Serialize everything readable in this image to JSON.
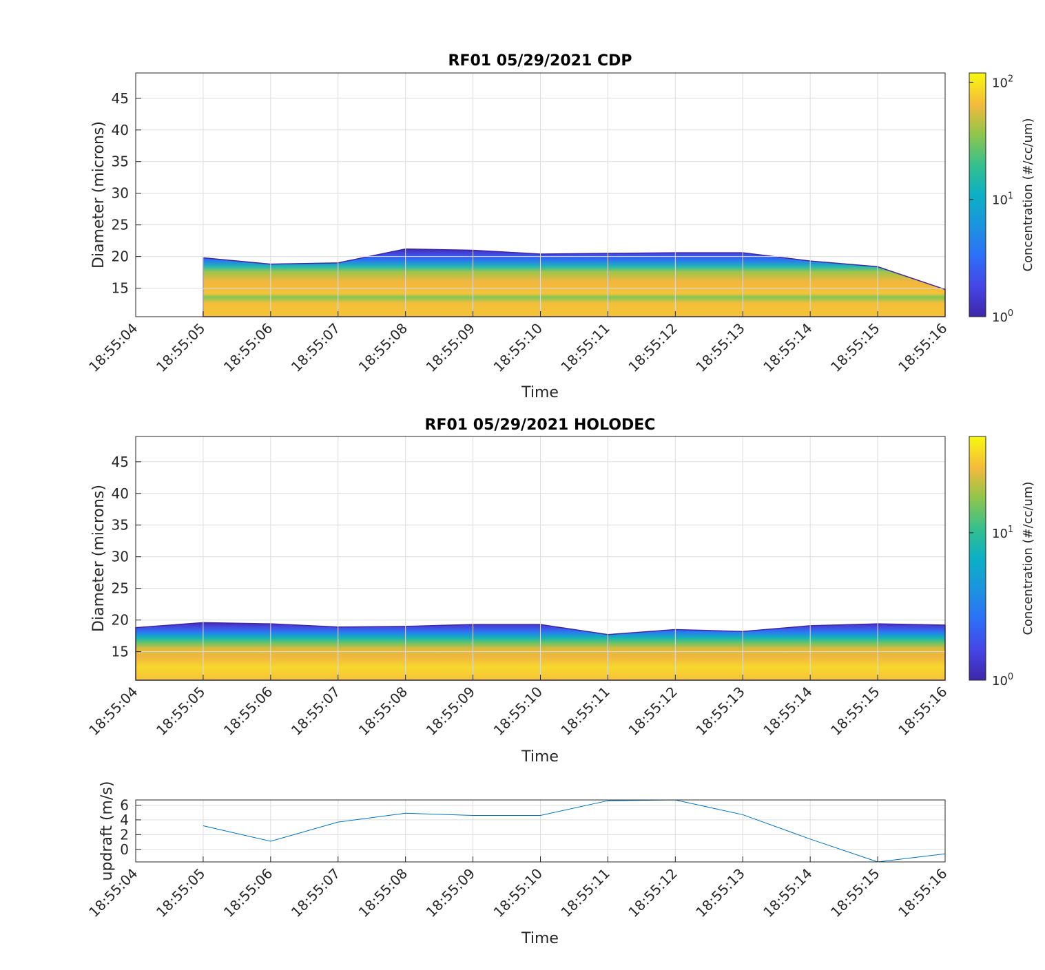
{
  "chart_data": [
    {
      "type": "heatmap",
      "title": "RF01 05/29/2021 CDP",
      "xlabel": "Time",
      "ylabel": "Diameter (microns)",
      "x": [
        "18:55:04",
        "18:55:05",
        "18:55:06",
        "18:55:07",
        "18:55:08",
        "18:55:09",
        "18:55:10",
        "18:55:11",
        "18:55:12",
        "18:55:13",
        "18:55:14",
        "18:55:15",
        "18:55:16"
      ],
      "xticks": [
        "18:55:04",
        "18:55:05",
        "18:55:06",
        "18:55:07",
        "18:55:08",
        "18:55:09",
        "18:55:10",
        "18:55:11",
        "18:55:12",
        "18:55:13",
        "18:55:14",
        "18:55:15",
        "18:55:16"
      ],
      "ylim": [
        10.5,
        49
      ],
      "yticks": [
        15,
        20,
        25,
        30,
        35,
        40,
        45
      ],
      "upper_diameter": [
        null,
        19.8,
        18.8,
        19.0,
        21.2,
        21.0,
        20.4,
        20.5,
        20.6,
        20.6,
        19.3,
        18.4,
        14.8
      ],
      "colorbar": {
        "label": "Concentration (#/cc/um)",
        "scale": "log",
        "range": [
          1,
          120
        ],
        "ticks": [
          {
            "base": "10",
            "exp": "0"
          },
          {
            "base": "10",
            "exp": "1"
          },
          {
            "base": "10",
            "exp": "2"
          }
        ],
        "tick_values": [
          1,
          10,
          100
        ]
      },
      "grid": true
    },
    {
      "type": "heatmap",
      "title": "RF01 05/29/2021 HOLODEC",
      "xlabel": "Time",
      "ylabel": "Diameter (microns)",
      "x": [
        "18:55:04",
        "18:55:05",
        "18:55:06",
        "18:55:07",
        "18:55:08",
        "18:55:09",
        "18:55:10",
        "18:55:11",
        "18:55:12",
        "18:55:13",
        "18:55:14",
        "18:55:15",
        "18:55:16"
      ],
      "xticks": [
        "18:55:04",
        "18:55:05",
        "18:55:06",
        "18:55:07",
        "18:55:08",
        "18:55:09",
        "18:55:10",
        "18:55:11",
        "18:55:12",
        "18:55:13",
        "18:55:14",
        "18:55:15",
        "18:55:16"
      ],
      "ylim": [
        10.5,
        49
      ],
      "yticks": [
        15,
        20,
        25,
        30,
        35,
        40,
        45
      ],
      "upper_diameter": [
        18.8,
        19.6,
        19.4,
        18.9,
        19.0,
        19.3,
        19.3,
        17.7,
        18.5,
        18.2,
        19.1,
        19.4,
        19.2
      ],
      "colorbar": {
        "label": "Concentration (#/cc/um)",
        "scale": "log",
        "range": [
          1,
          45
        ],
        "ticks": [
          {
            "base": "10",
            "exp": "0"
          },
          {
            "base": "10",
            "exp": "1"
          }
        ],
        "tick_values": [
          1,
          10
        ]
      },
      "grid": true
    },
    {
      "type": "line",
      "title": "",
      "xlabel": "Time",
      "ylabel": "updraft (m/s)",
      "x": [
        "18:55:05",
        "18:55:06",
        "18:55:07",
        "18:55:08",
        "18:55:09",
        "18:55:10",
        "18:55:11",
        "18:55:12",
        "18:55:13",
        "18:55:14",
        "18:55:15",
        "18:55:16"
      ],
      "xticks": [
        "18:55:04",
        "18:55:05",
        "18:55:06",
        "18:55:07",
        "18:55:08",
        "18:55:09",
        "18:55:10",
        "18:55:11",
        "18:55:12",
        "18:55:13",
        "18:55:14",
        "18:55:15",
        "18:55:16"
      ],
      "series": [
        {
          "values": [
            3.2,
            1.1,
            3.7,
            4.9,
            4.6,
            4.6,
            6.6,
            6.7,
            4.7,
            1.4,
            -1.7,
            -0.6
          ]
        }
      ],
      "ylim": [
        -1.7,
        6.7
      ],
      "yticks": [
        0,
        2,
        4,
        6
      ],
      "color": "#0072BD",
      "grid": true
    }
  ]
}
